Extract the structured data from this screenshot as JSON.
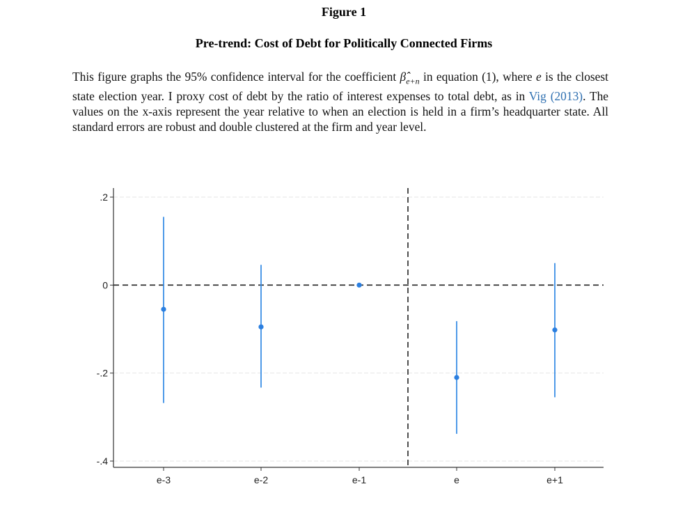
{
  "header": {
    "figure_label": "Figure 1",
    "title": "Pre-trend: Cost of Debt for Politically Connected Firms"
  },
  "caption": {
    "part1": "This figure graphs the 95% confidence interval for the coefficient ",
    "beta_symbol": "β̂",
    "beta_sub": "e+n",
    "part2": " in equation (1), where ",
    "e_symbol": "e",
    "part3": " is the closest state election year. I proxy cost of debt by the ratio of interest expenses to total debt, as in ",
    "citation": "Vig (2013)",
    "part4": ". The values on the x-axis represent the year relative to when an election is held in a firm’s headquarter state. All standard errors are robust and double clustered at the firm and year level."
  },
  "colors": {
    "point": "#2b7fe0",
    "ci": "#3a8ee6",
    "reference": "#222222",
    "grid": "#e6e6e6",
    "axis": "#333333"
  },
  "chart_data": {
    "type": "scatter",
    "title": "",
    "xlabel": "",
    "ylabel": "",
    "categories": [
      "e-3",
      "e-2",
      "e-1",
      "e",
      "e+1"
    ],
    "estimates": [
      -0.055,
      -0.095,
      0.0,
      -0.21,
      -0.102
    ],
    "ci_lower": [
      -0.268,
      -0.233,
      0.0,
      -0.338,
      -0.255
    ],
    "ci_upper": [
      0.155,
      0.046,
      0.0,
      -0.082,
      0.05
    ],
    "ylim": [
      -0.4,
      0.2
    ],
    "yticks": [
      0.2,
      0,
      -0.2,
      -0.4
    ],
    "ytick_labels": [
      ".2",
      "0",
      "-.2",
      "-.4"
    ],
    "reference_lines": {
      "horizontal_y": 0,
      "vertical_between": [
        "e-1",
        "e"
      ]
    },
    "grid": true
  }
}
